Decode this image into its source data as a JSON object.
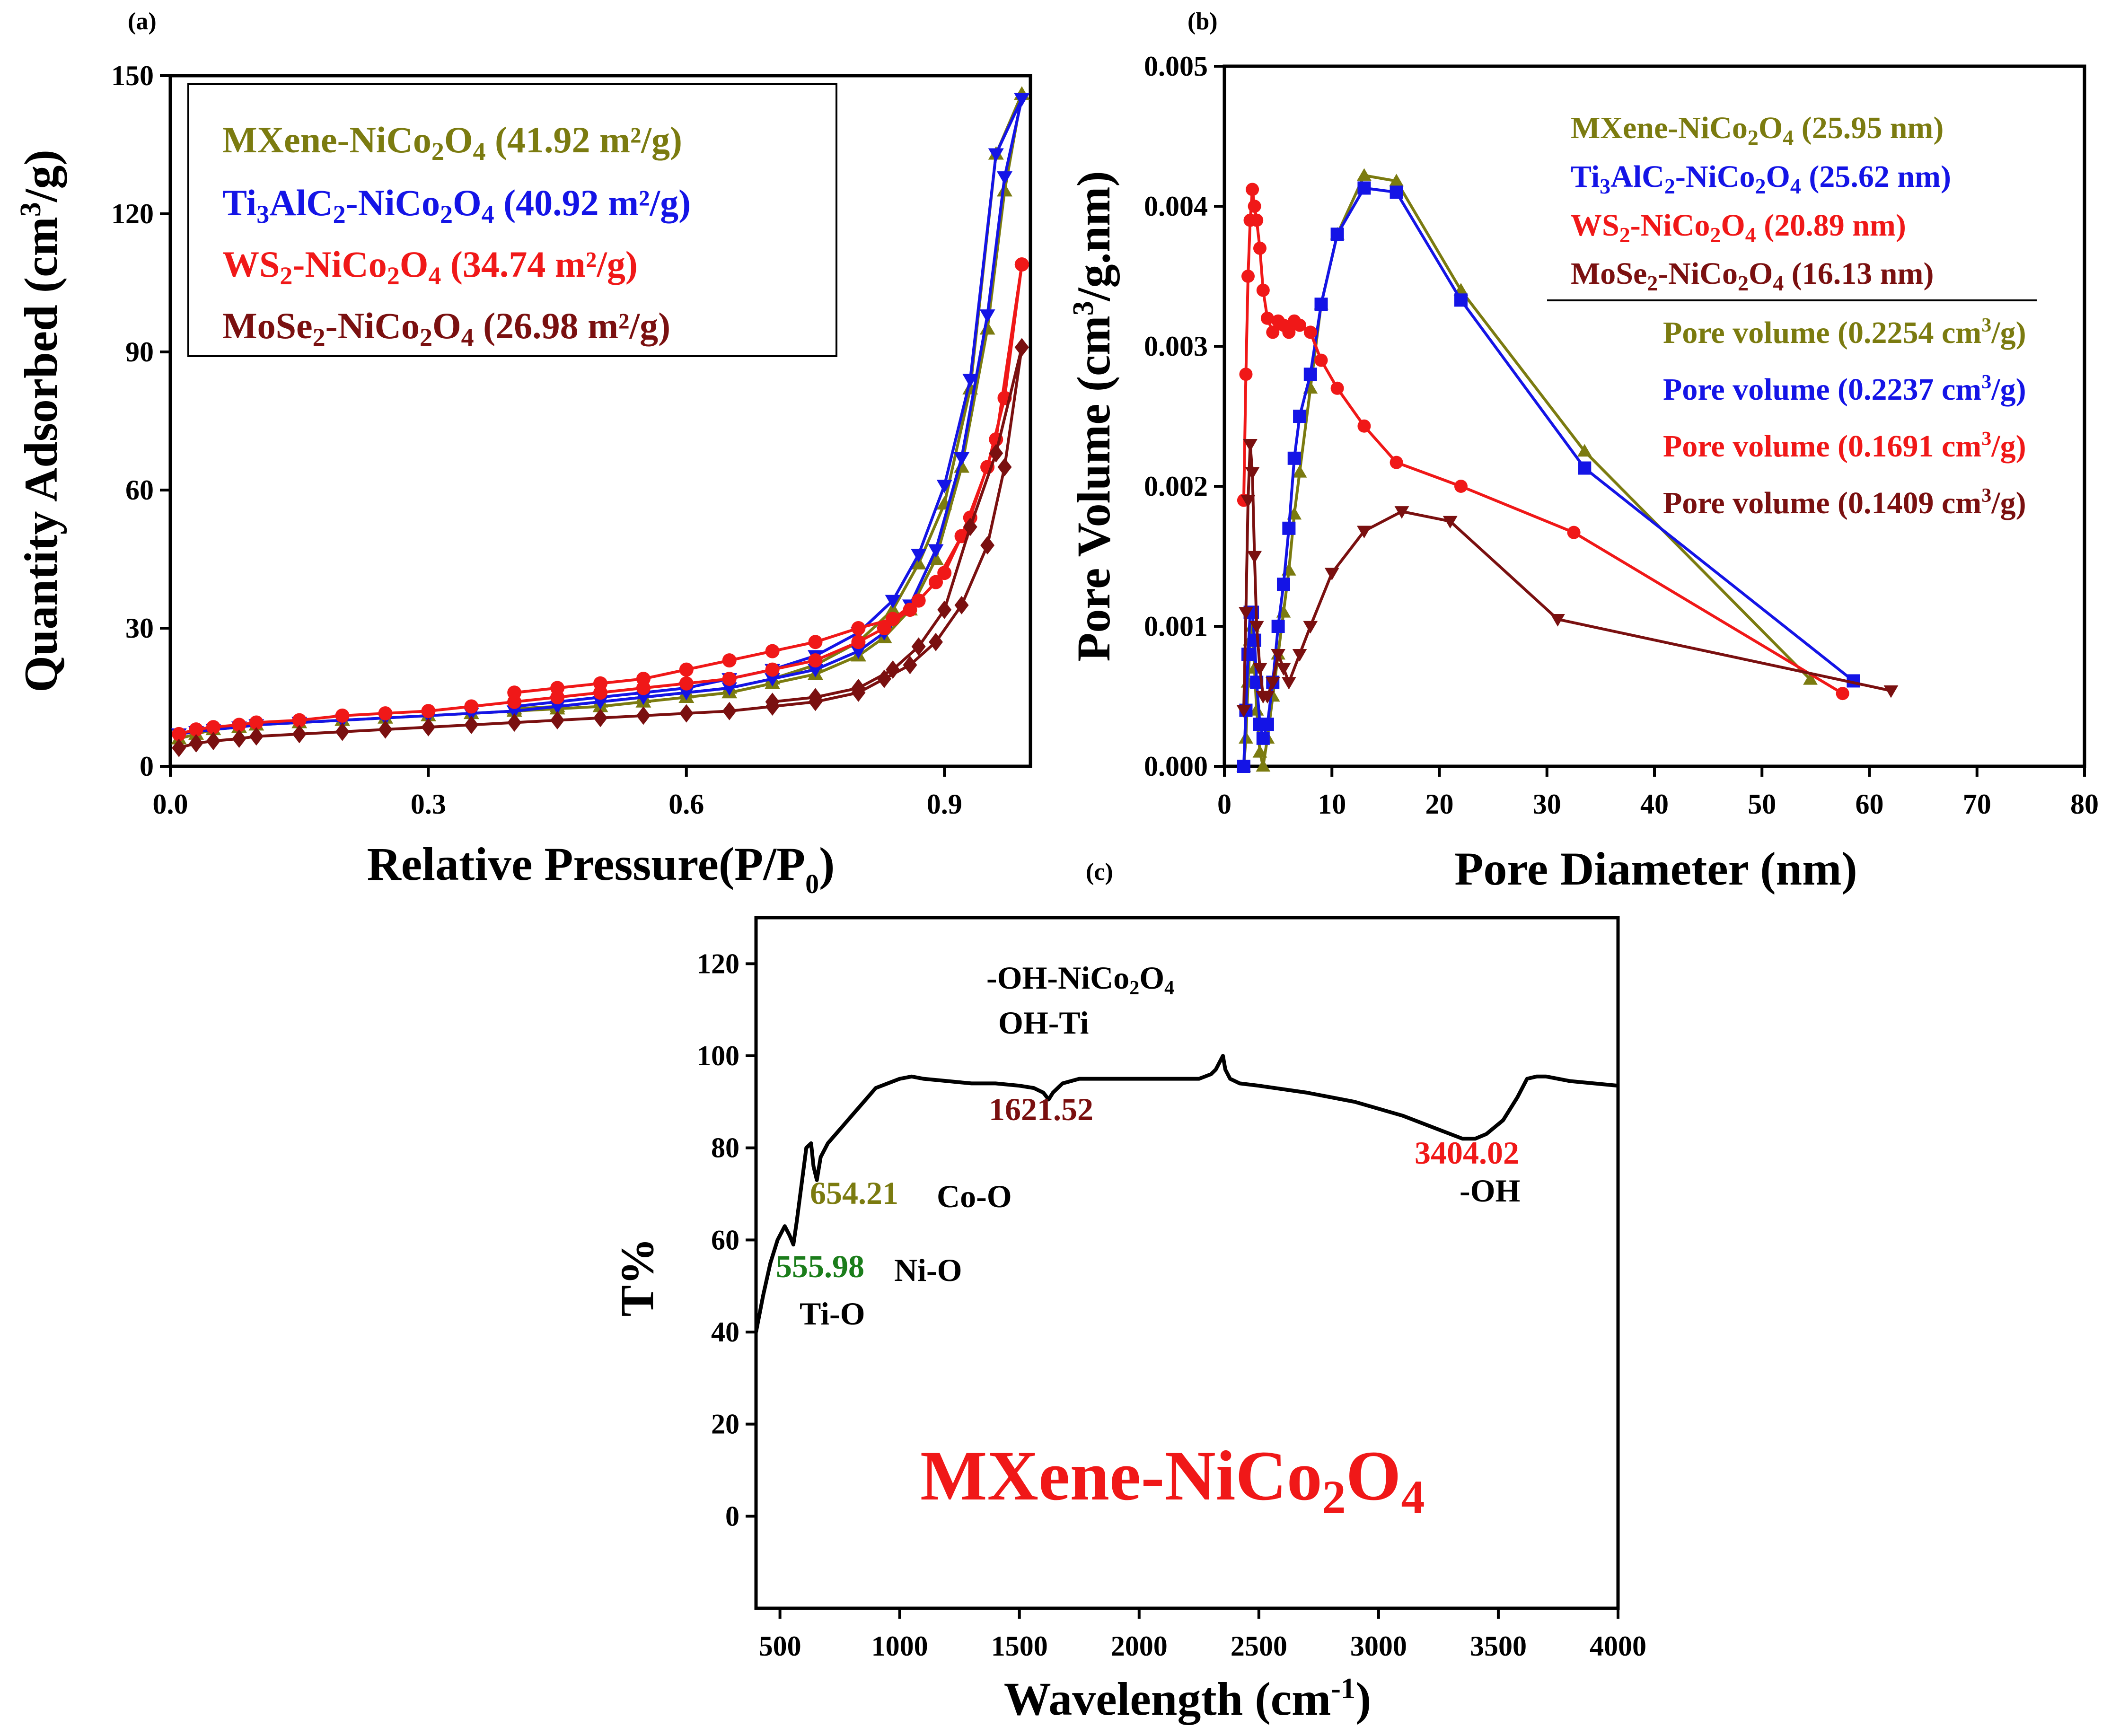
{
  "figure": {
    "panels": [
      "(a)",
      "(b)",
      "(c)"
    ]
  },
  "colors": {
    "olive": "#7b7b10",
    "blue": "#1414e6",
    "red": "#f01818",
    "maroon": "#7a1010",
    "green": "#1b7d1b",
    "black": "#000000"
  },
  "chart_data": [
    {
      "panel": "(a)",
      "type": "line",
      "xlabel": "Relative Pressure(P/P",
      "xlabel_sub": "0",
      "xlabel_close": ")",
      "ylabel": "Quantity Adsorbed (cm",
      "ylabel_sup": "3",
      "ylabel_tail": "/g)",
      "xlim": [
        0,
        1.0
      ],
      "ylim": [
        0,
        150
      ],
      "xticks": [
        "0.0",
        "0.3",
        "0.6",
        "0.9"
      ],
      "yticks": [
        "0",
        "30",
        "60",
        "90",
        "120",
        "150"
      ],
      "legend": [
        {
          "formula": "MXene-NiCo",
          "sub1": "2",
          "mid": "O",
          "sub2": "4",
          "value": " (41.92 m²/g)",
          "color": "#7b7b10"
        },
        {
          "formula": "Ti",
          "sub1": "3",
          "mid": "AlC",
          "sub2": "2",
          "tail": "-NiCo",
          "sub3": "2",
          "tail2": "O",
          "sub4": "4",
          "value": " (40.92 m²/g)",
          "color": "#1414e6"
        },
        {
          "formula": "WS",
          "sub1": "2",
          "mid": "-NiCo",
          "sub2": "2",
          "tail": "O",
          "sub3": "4",
          "value": " (34.74 m²/g)",
          "color": "#f01818"
        },
        {
          "formula": "MoSe",
          "sub1": "2",
          "mid": "-NiCo",
          "sub2": "2",
          "tail": "O",
          "sub3": "4",
          "value": " (26.98 m²/g)",
          "color": "#7a1010"
        }
      ],
      "series": [
        {
          "name": "MXene-NiCo2O4",
          "color": "#7b7b10",
          "marker": "triangle",
          "x": [
            0.01,
            0.03,
            0.05,
            0.08,
            0.1,
            0.15,
            0.2,
            0.25,
            0.3,
            0.35,
            0.4,
            0.45,
            0.5,
            0.55,
            0.6,
            0.65,
            0.7,
            0.75,
            0.8,
            0.83,
            0.86,
            0.89,
            0.92,
            0.95,
            0.97,
            0.99
          ],
          "y": [
            6,
            7,
            8,
            8.5,
            9,
            9.5,
            10,
            10.5,
            11,
            11.5,
            12,
            12.5,
            13,
            14,
            15,
            16,
            18,
            20,
            24,
            28,
            34,
            45,
            65,
            95,
            125,
            146
          ],
          "x_des": [
            0.99,
            0.96,
            0.93,
            0.9,
            0.87,
            0.84,
            0.8,
            0.75,
            0.7,
            0.65,
            0.6,
            0.55,
            0.5,
            0.45,
            0.4
          ],
          "y_des": [
            146,
            133,
            82,
            57,
            44,
            34,
            27,
            22,
            19,
            17,
            16,
            15,
            14,
            13,
            12.5
          ]
        },
        {
          "name": "Ti3AlC2-NiCo2O4",
          "color": "#1414e6",
          "marker": "triangle-down",
          "x": [
            0.01,
            0.03,
            0.05,
            0.08,
            0.1,
            0.15,
            0.2,
            0.25,
            0.3,
            0.35,
            0.4,
            0.45,
            0.5,
            0.55,
            0.6,
            0.65,
            0.7,
            0.75,
            0.8,
            0.83,
            0.86,
            0.89,
            0.92,
            0.95,
            0.97,
            0.99
          ],
          "y": [
            7,
            7.5,
            8,
            8.5,
            9,
            9.5,
            10,
            10.5,
            11,
            11.5,
            12,
            13,
            14,
            15,
            16,
            17,
            19,
            21,
            25,
            29,
            35,
            47,
            67,
            98,
            128,
            145
          ],
          "x_des": [
            0.99,
            0.96,
            0.93,
            0.9,
            0.87,
            0.84,
            0.8,
            0.75,
            0.7,
            0.65,
            0.6,
            0.55,
            0.5,
            0.45,
            0.4
          ],
          "y_des": [
            145,
            133,
            84,
            61,
            46,
            36,
            29,
            24,
            21,
            19,
            17,
            16,
            15,
            14,
            13
          ]
        },
        {
          "name": "WS2-NiCo2O4",
          "color": "#f01818",
          "marker": "circle",
          "x": [
            0.01,
            0.03,
            0.05,
            0.08,
            0.1,
            0.15,
            0.2,
            0.25,
            0.3,
            0.35,
            0.4,
            0.45,
            0.5,
            0.55,
            0.6,
            0.65,
            0.7,
            0.75,
            0.8,
            0.83,
            0.86,
            0.89,
            0.92,
            0.95,
            0.97,
            0.99
          ],
          "y": [
            7,
            8,
            8.5,
            9,
            9.5,
            10,
            11,
            11.5,
            12,
            13,
            14,
            15,
            16,
            17,
            18,
            19,
            21,
            23,
            27,
            30,
            34,
            40,
            50,
            65,
            80,
            109
          ],
          "x_des": [
            0.99,
            0.96,
            0.93,
            0.9,
            0.87,
            0.84,
            0.8,
            0.75,
            0.7,
            0.65,
            0.6,
            0.55,
            0.5,
            0.45,
            0.4
          ],
          "y_des": [
            109,
            71,
            54,
            42,
            36,
            32,
            30,
            27,
            25,
            23,
            21,
            19,
            18,
            17,
            16
          ]
        },
        {
          "name": "MoSe2-NiCo2O4",
          "color": "#7a1010",
          "marker": "diamond",
          "x": [
            0.01,
            0.03,
            0.05,
            0.08,
            0.1,
            0.15,
            0.2,
            0.25,
            0.3,
            0.35,
            0.4,
            0.45,
            0.5,
            0.55,
            0.6,
            0.65,
            0.7,
            0.75,
            0.8,
            0.83,
            0.86,
            0.89,
            0.92,
            0.95,
            0.97,
            0.99
          ],
          "y": [
            4,
            5,
            5.5,
            6,
            6.5,
            7,
            7.5,
            8,
            8.5,
            9,
            9.5,
            10,
            10.5,
            11,
            11.5,
            12,
            13,
            14,
            16,
            19,
            22,
            27,
            35,
            48,
            65,
            91
          ],
          "x_des": [
            0.99,
            0.96,
            0.93,
            0.9,
            0.87,
            0.84,
            0.8,
            0.75,
            0.7
          ],
          "y_des": [
            91,
            68,
            52,
            34,
            26,
            21,
            17,
            15,
            14
          ]
        }
      ]
    },
    {
      "panel": "(b)",
      "type": "line",
      "xlabel": "Pore Diameter (nm)",
      "ylabel": "Pore Volume (cm",
      "ylabel_sup": "3",
      "ylabel_tail": "/g.nm)",
      "xlim": [
        0,
        80
      ],
      "ylim": [
        0,
        0.005
      ],
      "xticks": [
        "0",
        "10",
        "20",
        "30",
        "40",
        "50",
        "60",
        "70",
        "80"
      ],
      "yticks": [
        "0.000",
        "0.001",
        "0.002",
        "0.003",
        "0.004",
        "0.005"
      ],
      "legend": [
        {
          "formula": "MXene-NiCo",
          "sub1": "2",
          "mid": "O",
          "sub2": "4",
          "value": " (25.95 nm)",
          "color": "#7b7b10"
        },
        {
          "formula": "Ti",
          "sub1": "3",
          "mid": "AlC",
          "sub2": "2",
          "tail": "-NiCo",
          "sub3": "2",
          "tail2": "O",
          "sub4": "4",
          "value": " (25.62 nm)",
          "color": "#1414e6"
        },
        {
          "formula": "WS",
          "sub1": "2",
          "mid": "-NiCo",
          "sub2": "2",
          "tail": "O",
          "sub3": "4",
          "value": " (20.89 nm)",
          "color": "#f01818"
        },
        {
          "formula": "MoSe",
          "sub1": "2",
          "mid": "-NiCo",
          "sub2": "2",
          "tail": "O",
          "sub3": "4",
          "value": " (16.13 nm)",
          "color": "#7a1010"
        }
      ],
      "pore_volume": [
        {
          "label": "Pore volume (0.2254 cm",
          "sup": "3",
          "tail": "/g)",
          "color": "#7b7b10"
        },
        {
          "label": "Pore volume (0.2237 cm",
          "sup": "3",
          "tail": "/g)",
          "color": "#1414e6"
        },
        {
          "label": "Pore volume (0.1691 cm",
          "sup": "3",
          "tail": "/g)",
          "color": "#f01818"
        },
        {
          "label": "Pore volume (0.1409 cm",
          "sup": "3",
          "tail": "/g)",
          "color": "#7a1010"
        }
      ],
      "series": [
        {
          "name": "MXene-NiCo2O4",
          "color": "#7b7b10",
          "marker": "triangle",
          "x": [
            1.8,
            2.0,
            2.2,
            2.4,
            2.6,
            2.8,
            3.0,
            3.3,
            3.6,
            4.0,
            4.5,
            5.0,
            5.5,
            6.0,
            6.5,
            7.0,
            8.0,
            9.0,
            10.5,
            13.0,
            16.0,
            22.0,
            33.5,
            54.5
          ],
          "y": [
            0.0,
            0.0002,
            0.0006,
            0.0009,
            0.001,
            0.0007,
            0.0004,
            0.0001,
            0.0,
            0.0002,
            0.0005,
            0.0008,
            0.0011,
            0.0014,
            0.0018,
            0.0021,
            0.0027,
            0.0033,
            0.0038,
            0.00422,
            0.00418,
            0.0034,
            0.00225,
            0.00062
          ]
        },
        {
          "name": "Ti3AlC2-NiCo2O4",
          "color": "#1414e6",
          "marker": "square",
          "x": [
            1.8,
            2.0,
            2.2,
            2.4,
            2.6,
            2.8,
            3.0,
            3.3,
            3.6,
            4.0,
            4.5,
            5.0,
            5.5,
            6.0,
            6.5,
            7.0,
            8.0,
            9.0,
            10.5,
            13.0,
            16.0,
            22.0,
            33.5,
            58.5
          ],
          "y": [
            0.0,
            0.0004,
            0.0008,
            0.0011,
            0.0011,
            0.0009,
            0.0006,
            0.0003,
            0.0002,
            0.0003,
            0.0006,
            0.001,
            0.0013,
            0.0017,
            0.0022,
            0.0025,
            0.0028,
            0.0033,
            0.0038,
            0.00413,
            0.0041,
            0.00333,
            0.00213,
            0.00061
          ]
        },
        {
          "name": "WS2-NiCo2O4",
          "color": "#f01818",
          "marker": "circle",
          "x": [
            1.8,
            2.0,
            2.2,
            2.4,
            2.6,
            2.8,
            3.0,
            3.3,
            3.6,
            4.0,
            4.5,
            5.0,
            5.5,
            6.0,
            6.5,
            7.0,
            8.0,
            9.0,
            10.5,
            13.0,
            16.0,
            22.0,
            32.5,
            57.5
          ],
          "y": [
            0.0019,
            0.0028,
            0.0035,
            0.0039,
            0.00412,
            0.004,
            0.0039,
            0.0037,
            0.0034,
            0.0032,
            0.0031,
            0.00318,
            0.00315,
            0.0031,
            0.00318,
            0.00315,
            0.0031,
            0.0029,
            0.0027,
            0.00243,
            0.00217,
            0.002,
            0.00167,
            0.00052
          ]
        },
        {
          "name": "MoSe2-NiCo2O4",
          "color": "#7a1010",
          "marker": "triangle-down",
          "x": [
            1.8,
            2.0,
            2.2,
            2.4,
            2.6,
            2.8,
            3.0,
            3.3,
            3.6,
            4.0,
            4.5,
            5.0,
            5.5,
            6.0,
            7.0,
            8.0,
            10.0,
            13.0,
            16.5,
            21.0,
            31.0,
            62.0
          ],
          "y": [
            0.0004,
            0.0011,
            0.0019,
            0.0023,
            0.0021,
            0.0015,
            0.001,
            0.0007,
            0.0005,
            0.0005,
            0.0006,
            0.0008,
            0.0007,
            0.0006,
            0.0008,
            0.001,
            0.00138,
            0.00168,
            0.00182,
            0.00175,
            0.00105,
            0.00054
          ]
        }
      ]
    },
    {
      "panel": "(c)",
      "type": "line",
      "xlabel": "Wavelength (cm",
      "xlabel_sup": "-1",
      "xlabel_close": ")",
      "ylabel": "T%",
      "xlim": [
        400,
        4000
      ],
      "ylim": [
        -20,
        130
      ],
      "xticks": [
        "500",
        "1000",
        "1500",
        "2000",
        "2500",
        "3000",
        "3500",
        "4000"
      ],
      "yticks": [
        "0",
        "20",
        "40",
        "60",
        "80",
        "100",
        "120"
      ],
      "title_inside": {
        "formula": "MXene-NiCo",
        "sub1": "2",
        "mid": "O",
        "sub2": "4",
        "color": "#f01818"
      },
      "annotations": [
        {
          "text": "-OH-NiCo",
          "sub1": "2",
          "mid": "O",
          "sub2": "4",
          "color": "#000000"
        },
        {
          "text": "OH-Ti",
          "color": "#000000"
        },
        {
          "text": "1621.52",
          "color": "#7a1010"
        },
        {
          "text": "3404.02",
          "color": "#f01818"
        },
        {
          "text": "-OH",
          "color": "#000000"
        },
        {
          "text": "654.21",
          "color": "#7b7b10"
        },
        {
          "text": "Co-O",
          "color": "#000000"
        },
        {
          "text": "555.98",
          "color": "#1b7d1b"
        },
        {
          "text": "Ni-O",
          "color": "#000000"
        },
        {
          "text": "Ti-O",
          "color": "#000000"
        }
      ],
      "series": [
        {
          "name": "MXene-NiCo2O4",
          "color": "#000000",
          "x": [
            400,
            430,
            460,
            490,
            520,
            540,
            556,
            570,
            590,
            610,
            630,
            640,
            654,
            670,
            700,
            750,
            800,
            850,
            900,
            950,
            1000,
            1050,
            1100,
            1200,
            1300,
            1400,
            1500,
            1560,
            1600,
            1622,
            1640,
            1680,
            1750,
            1850,
            2000,
            2150,
            2250,
            2300,
            2320,
            2340,
            2350,
            2360,
            2380,
            2420,
            2500,
            2700,
            2900,
            3100,
            3250,
            3350,
            3404,
            3450,
            3520,
            3580,
            3620,
            3660,
            3700,
            3800,
            3900,
            4000
          ],
          "y": [
            40,
            48,
            55,
            60,
            63,
            61,
            59,
            64,
            72,
            80,
            81,
            76,
            73,
            78,
            81,
            84,
            87,
            90,
            93,
            94,
            95,
            95.5,
            95,
            94.5,
            94,
            94,
            93.5,
            93,
            92,
            90.5,
            92,
            94,
            95,
            95,
            95,
            95,
            95,
            96,
            97,
            99,
            100,
            97,
            95,
            94,
            93.5,
            92,
            90,
            87,
            84,
            82,
            82,
            83,
            86,
            91,
            95,
            95.5,
            95.5,
            94.5,
            94,
            93.5
          ]
        }
      ]
    }
  ]
}
